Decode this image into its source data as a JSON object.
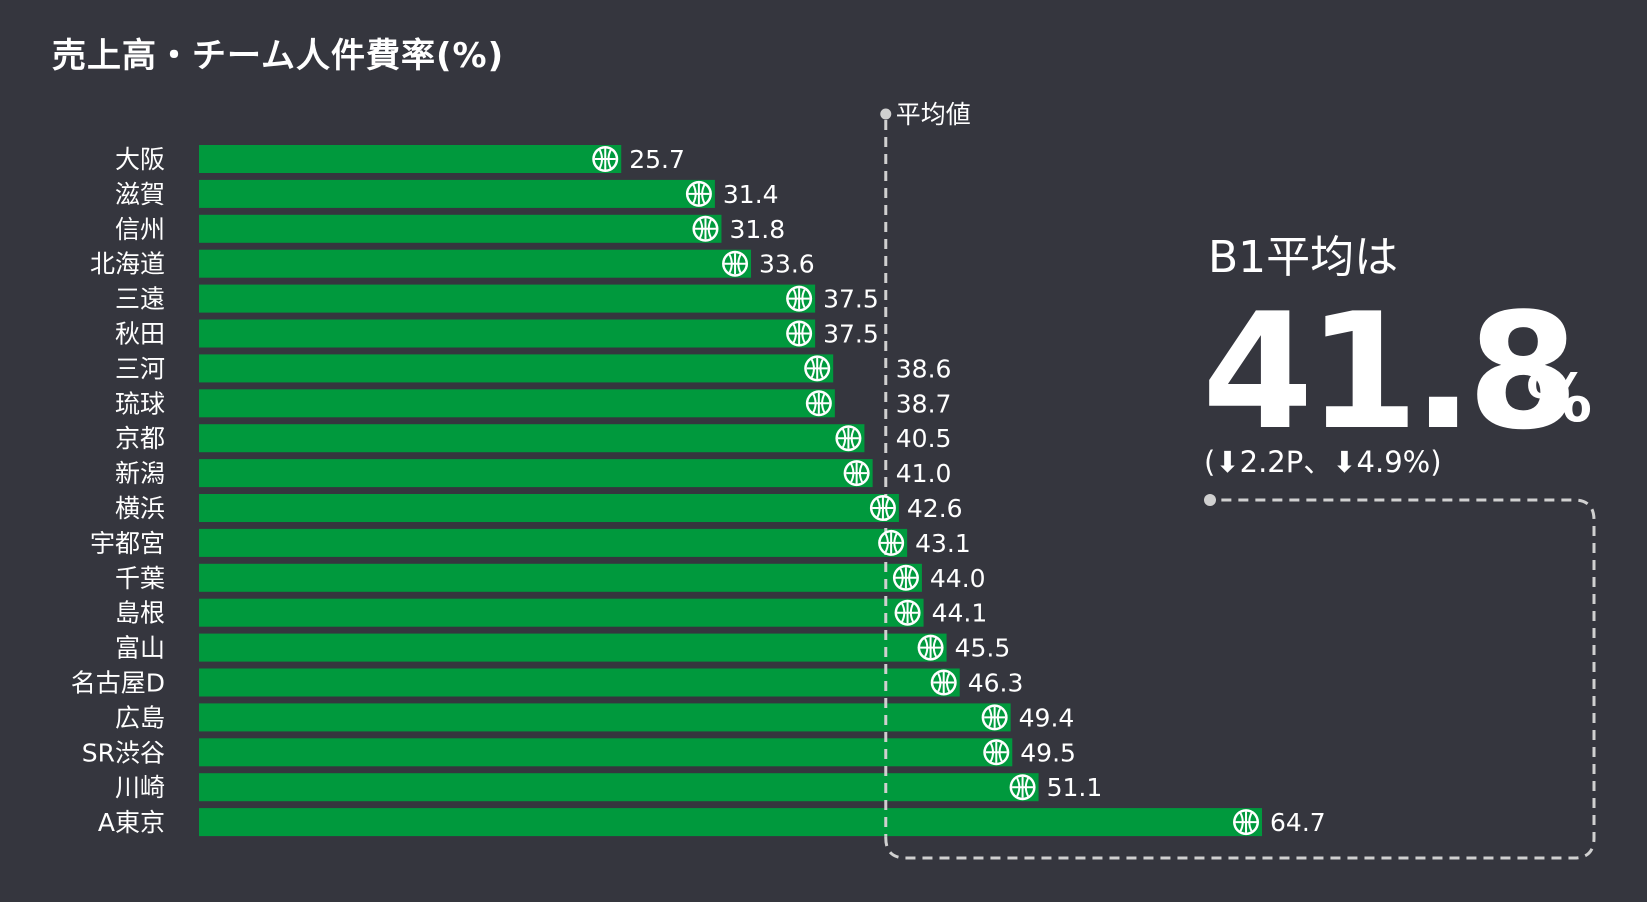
{
  "colors": {
    "background": "#35363e",
    "bar": "#00993d",
    "text": "#ffffff",
    "guide": "#d0d0d0"
  },
  "icon": "basketball-icon",
  "chart_data": {
    "type": "bar",
    "orientation": "horizontal",
    "title": "売上高・チーム人件費率(%)",
    "categories": [
      "大阪",
      "滋賀",
      "信州",
      "北海道",
      "三遠",
      "秋田",
      "三河",
      "琉球",
      "京都",
      "新潟",
      "横浜",
      "宇都宮",
      "千葉",
      "島根",
      "富山",
      "名古屋D",
      "広島",
      "SR渋谷",
      "川崎",
      "A東京"
    ],
    "values": [
      25.7,
      31.4,
      31.8,
      33.6,
      37.5,
      37.5,
      38.6,
      38.7,
      40.5,
      41.0,
      42.6,
      43.1,
      44.0,
      44.1,
      45.5,
      46.3,
      49.4,
      49.5,
      51.1,
      64.7
    ],
    "value_labels": [
      "25.7",
      "31.4",
      "31.8",
      "33.6",
      "37.5",
      "37.5",
      "38.6",
      "38.7",
      "40.5",
      "41.0",
      "42.6",
      "43.1",
      "44.0",
      "44.1",
      "45.5",
      "46.3",
      "49.4",
      "49.5",
      "51.1",
      "64.7"
    ],
    "reference_line": {
      "label": "平均値",
      "value": 41.8
    },
    "xlim": [
      0,
      70
    ],
    "grid": false,
    "legend": "none"
  },
  "callout": {
    "heading": "B1平均は",
    "value": "41.8",
    "unit": "%",
    "change": "(⬇2.2P、⬇4.9%)"
  }
}
